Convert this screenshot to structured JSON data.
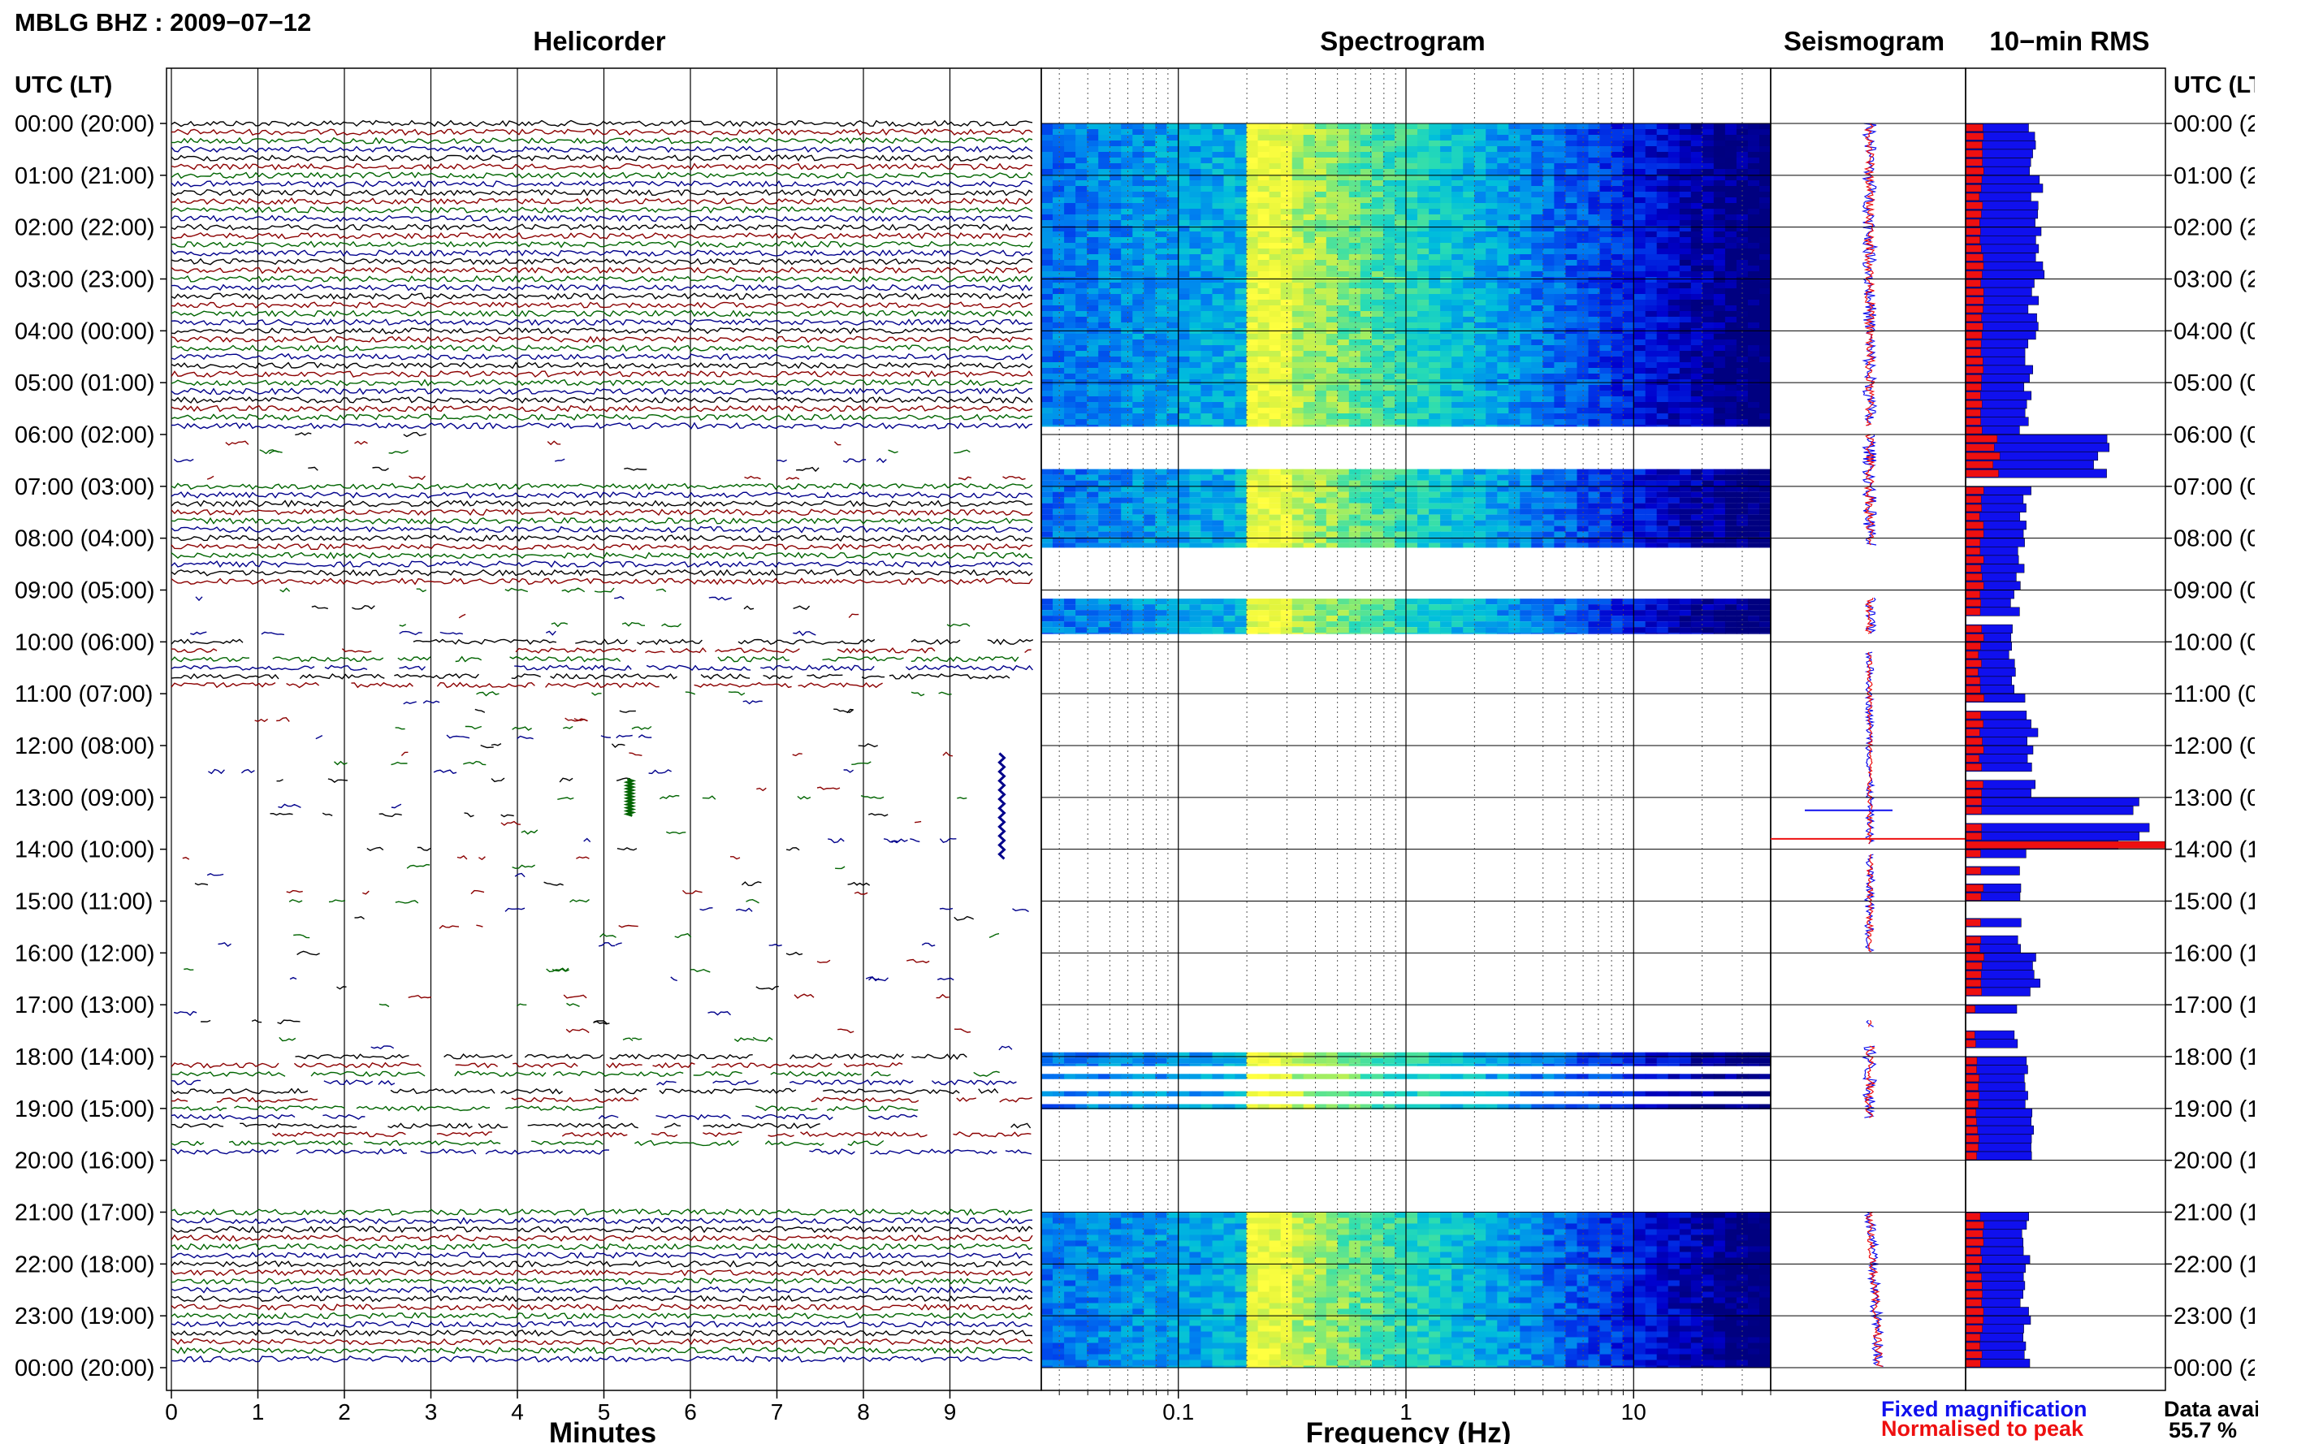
{
  "station_title": "MBLG BHZ : 2009−07−12",
  "panel_titles": {
    "helicorder": "Helicorder",
    "spectrogram": "Spectrogram",
    "seismogram": "Seismogram",
    "rms": "10−min RMS"
  },
  "axis_labels": {
    "time_left": "UTC (LT)",
    "time_right": "UTC (LT)",
    "helicorder_x": "Minutes",
    "spectrogram_x": "Frequency (Hz)"
  },
  "legend": {
    "fixed": "Fixed magnification",
    "normalised": "Normalised to peak",
    "fixed_color": "#1010ee",
    "normalised_color": "#ee1010"
  },
  "availability": {
    "label": "Data availability",
    "value": "55.7 %"
  },
  "colors": {
    "trace_cycle": [
      "#000000",
      "#8b0000",
      "#006400",
      "#00008b"
    ],
    "rms_fixed": "#1010ee",
    "rms_normalised": "#ee1010",
    "spectrogram_low": "#000080",
    "spectrogram_high": "#ffff40"
  },
  "chart_data": [
    {
      "type": "line",
      "name": "helicorder",
      "xlabel": "Minutes",
      "x_ticks": [
        "0",
        "1",
        "2",
        "3",
        "4",
        "5",
        "6",
        "7",
        "8",
        "9"
      ],
      "xlim": [
        0,
        10
      ],
      "time_labels": [
        "00:00 (20:00)",
        "01:00 (21:00)",
        "02:00 (22:00)",
        "03:00 (23:00)",
        "04:00 (00:00)",
        "05:00 (01:00)",
        "06:00 (02:00)",
        "07:00 (03:00)",
        "08:00 (04:00)",
        "09:00 (05:00)",
        "10:00 (06:00)",
        "11:00 (07:00)",
        "12:00 (08:00)",
        "13:00 (09:00)",
        "14:00 (10:00)",
        "15:00 (11:00)",
        "16:00 (12:00)",
        "17:00 (13:00)",
        "18:00 (14:00)",
        "19:00 (15:00)",
        "20:00 (16:00)",
        "21:00 (17:00)",
        "22:00 (18:00)",
        "23:00 (19:00)",
        "00:00 (20:00)"
      ],
      "rows_per_hour": 6,
      "data_availability_per_hour": [
        "full",
        "full",
        "full",
        "full",
        "full",
        "full",
        "sparse",
        "full",
        "full",
        "sparse",
        "partial",
        "sparse",
        "sparse",
        "sparse",
        "sparse",
        "sparse",
        "sparse",
        "sparse",
        "partial",
        "partial",
        "none",
        "full",
        "full",
        "full"
      ],
      "events": [
        {
          "time_utc": "13:00",
          "minute": 5.3,
          "note": "vertical spike (green trace)"
        },
        {
          "time_utc": "13:10",
          "minute": 9.6,
          "note": "large spike (blue trace)"
        }
      ]
    },
    {
      "type": "heatmap",
      "name": "spectrogram",
      "xlabel": "Frequency (Hz)",
      "x_scale": "log",
      "x_ticks": [
        "0.1",
        "1",
        "10"
      ],
      "xlim": [
        0.025,
        40
      ],
      "peak_band_hz": [
        0.2,
        0.3
      ],
      "data_blocks_utc": [
        [
          "00:00",
          "05:50"
        ],
        [
          "06:40",
          "08:10"
        ],
        [
          "09:10",
          "09:50"
        ],
        [
          "17:55",
          "18:10"
        ],
        [
          "18:20",
          "18:25"
        ],
        [
          "18:40",
          "18:45"
        ],
        [
          "18:55",
          "19:00"
        ],
        [
          "21:00",
          "23:59"
        ]
      ]
    },
    {
      "type": "line",
      "name": "seismogram",
      "series": [
        {
          "name": "Fixed magnification"
        },
        {
          "name": "Normalised to peak"
        }
      ]
    },
    {
      "type": "bar",
      "name": "10-min RMS",
      "series": [
        {
          "name": "Fixed magnification",
          "hourly_values": [
            0.34,
            0.36,
            0.38,
            0.34,
            0.33,
            0.3,
            0.66,
            0.3,
            0.27,
            0.25,
            0.24,
            0.33,
            0.32,
            0.84,
            0.3,
            0.28,
            0.35,
            0.26,
            0.31,
            0.31,
            0,
            0.3,
            0.3,
            0.3
          ]
        },
        {
          "name": "Normalised to peak",
          "hourly_values": [
            0.08,
            0.08,
            0.08,
            0.08,
            0.08,
            0.08,
            0.15,
            0.08,
            0.08,
            0.08,
            0.07,
            0.08,
            0.08,
            1.0,
            0.08,
            0.08,
            0.08,
            0.05,
            0.06,
            0.06,
            0,
            0.08,
            0.08,
            0.08
          ]
        }
      ]
    }
  ]
}
